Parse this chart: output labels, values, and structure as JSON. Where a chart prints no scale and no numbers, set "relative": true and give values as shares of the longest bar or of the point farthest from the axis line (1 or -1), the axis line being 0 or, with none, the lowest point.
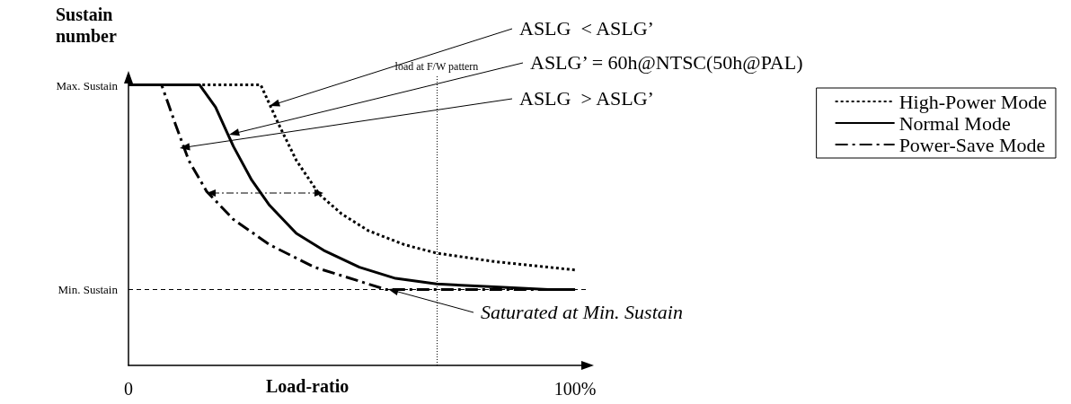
{
  "chart_data": {
    "type": "line",
    "relative": true,
    "ylabel": "Sustain number",
    "xlabel": "Load-ratio",
    "xlim": [
      0,
      103
    ],
    "xticks": [
      0,
      {
        "value": 100,
        "label": "100%"
      }
    ],
    "grid": false,
    "legend": "top right",
    "marker": "none",
    "series": [
      {
        "name": "High-Power Mode",
        "color": "#000000",
        "line_style": "dotted",
        "x": [
          10.5,
          29.6,
          33.6,
          37.6,
          42.7,
          47.7,
          53.7,
          61.8,
          69,
          81.9,
          100
        ],
        "values": [
          1,
          1,
          0.86,
          0.73,
          0.61,
          0.54,
          0.48,
          0.43,
          0.4,
          0.37,
          0.34
        ]
      },
      {
        "name": "Normal Mode",
        "color": "#000000",
        "line_style": "solid",
        "x": [
          0,
          15.9,
          19.5,
          23.5,
          27.6,
          31.6,
          37.6,
          43.7,
          51.7,
          59.8,
          69,
          81.9,
          94,
          100
        ],
        "values": [
          1,
          1,
          0.92,
          0.78,
          0.66,
          0.57,
          0.47,
          0.41,
          0.35,
          0.31,
          0.29,
          0.28,
          0.27,
          0.27
        ]
      },
      {
        "name": "Power-Save Mode",
        "color": "#000000",
        "line_style": "dashed",
        "x": [
          0,
          7.4,
          10.5,
          13.5,
          17.5,
          23.5,
          31.6,
          41.6,
          51.7,
          57.7,
          69,
          81.9,
          100
        ],
        "values": [
          1,
          1,
          0.86,
          0.73,
          0.62,
          0.52,
          0.43,
          0.35,
          0.3,
          0.27,
          0.27,
          0.27,
          0.27
        ]
      }
    ],
    "ref_lines": [
      {
        "axis": "y",
        "value": 0.27,
        "line_style": "dashed"
      },
      {
        "axis": "x",
        "value": 69,
        "label": "load at F/W pattern",
        "line_style": "dotted"
      }
    ],
    "annotations": [
      "ASLG  < ASLG’",
      "ASLG’ = 60h@NTSC(50h@PAL)",
      "ASLG  > ASLG’",
      "Saturated at Min. Sustain",
      "Max. Sustain",
      "Min. Sustain"
    ]
  }
}
